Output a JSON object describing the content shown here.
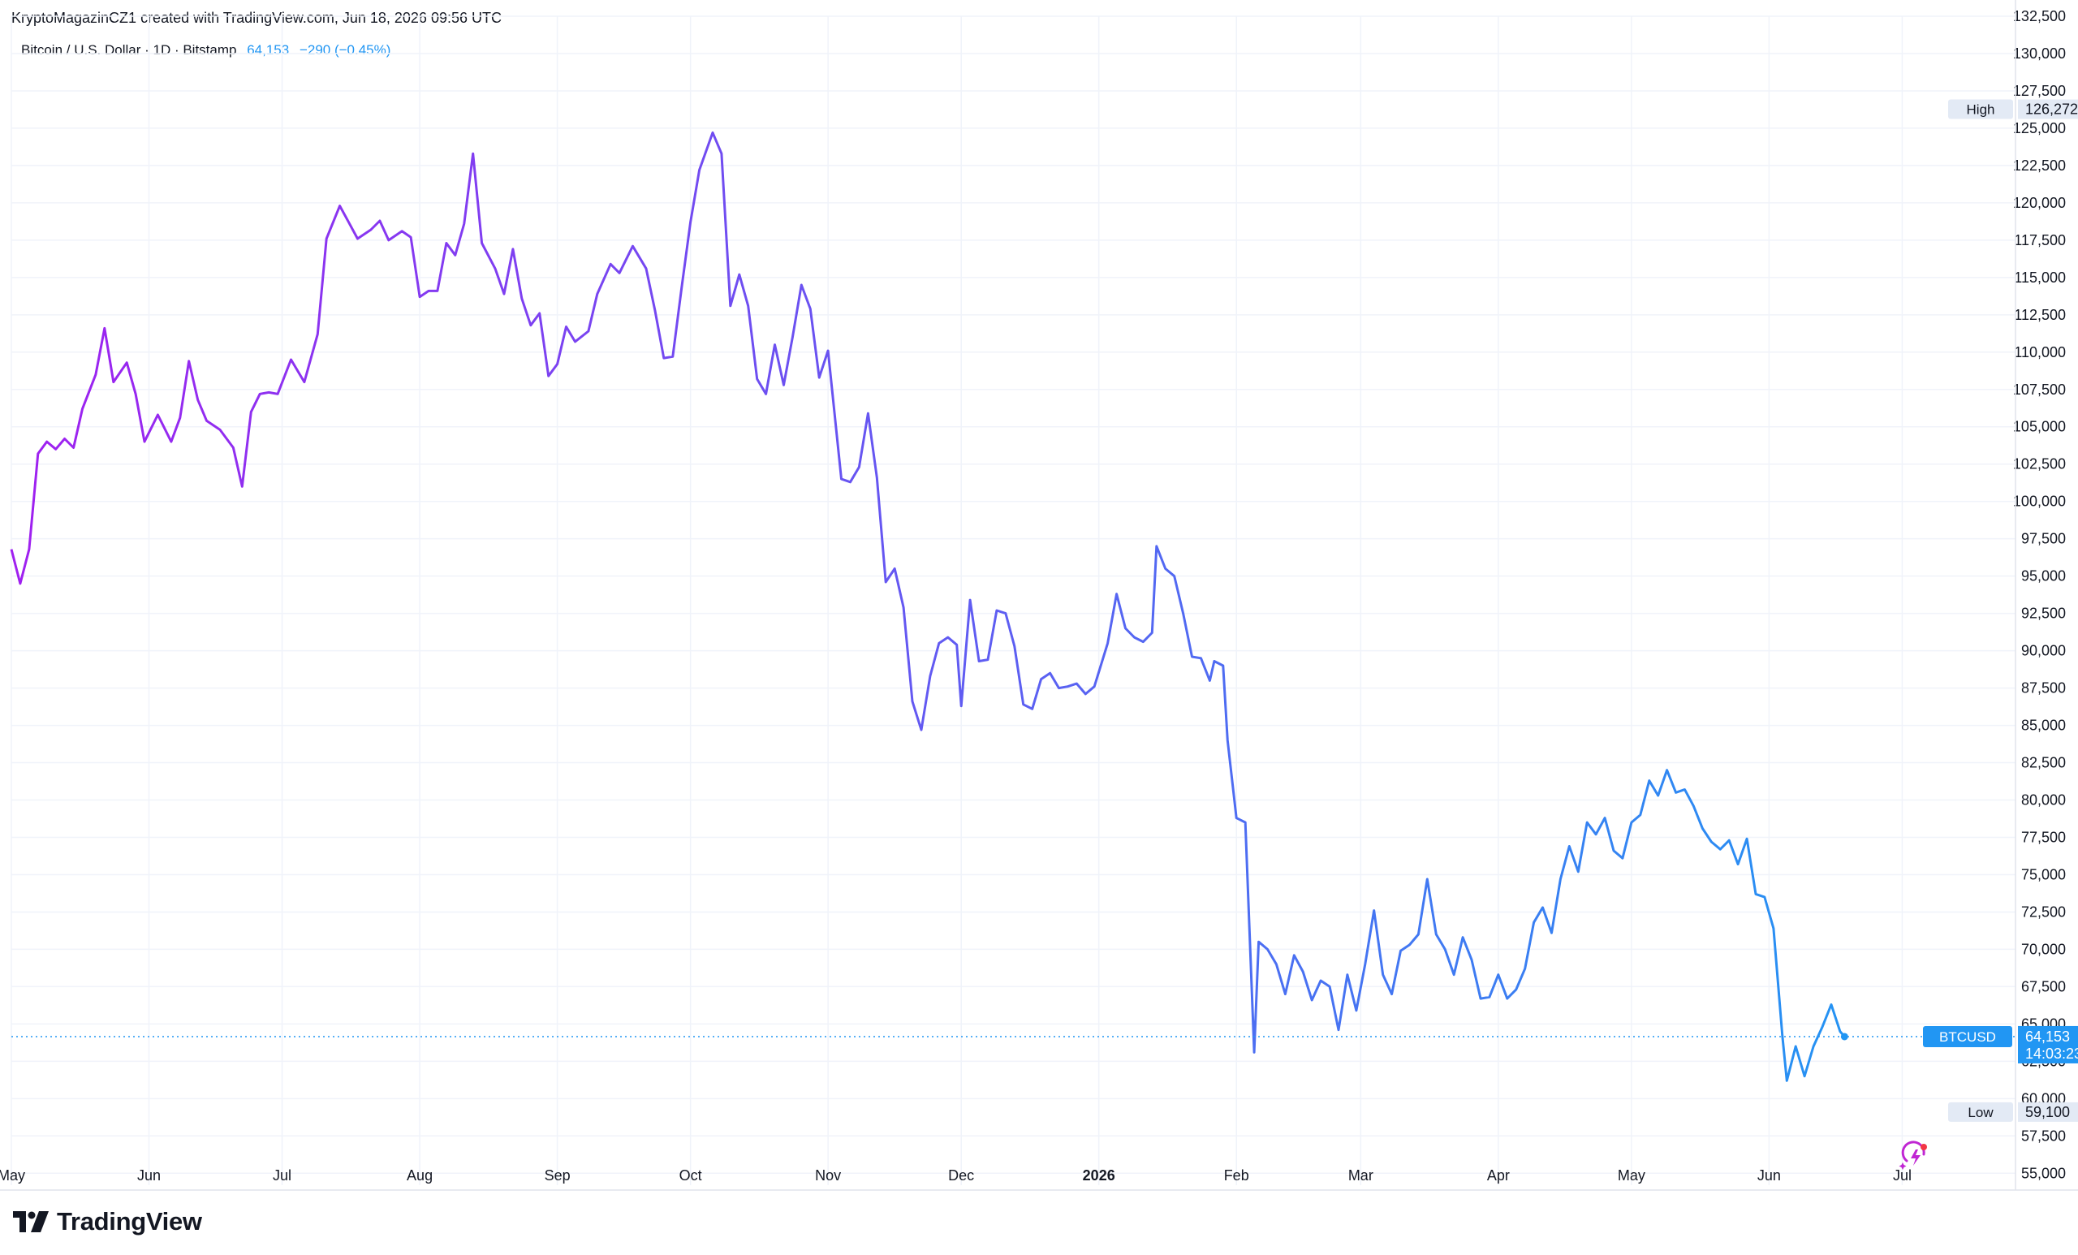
{
  "attribution": "KryptoMagazinCZ1 created with TradingView.com, Jun 18, 2026 09:56 UTC",
  "symbol": {
    "name": "Bitcoin / U.S. Dollar · 1D · Bitstamp",
    "price": "64,153",
    "change": "−290 (−0.45%)"
  },
  "brand": {
    "logo_text": "TradingView"
  },
  "colors": {
    "line_start": "#a020f0",
    "line_end": "#2196f3",
    "last_price": "#2196f3",
    "grid": "#f0f3fa",
    "label_bg": "#e3eaf5"
  },
  "icons": {
    "bottom_right": "lightning-swirl-icon"
  },
  "chart_data": {
    "type": "line",
    "ticker": "BTCUSD",
    "last_price": 64153,
    "last_price_label": "64,153",
    "countdown": "14:03:23",
    "high": {
      "label": "High",
      "value": 126272,
      "value_label": "126,272"
    },
    "low": {
      "label": "Low",
      "value": 59100,
      "value_label": "59,100"
    },
    "ylim": [
      54200,
      132500
    ],
    "yticks": [
      55000,
      57500,
      60000,
      62500,
      65000,
      67500,
      70000,
      72500,
      75000,
      77500,
      80000,
      82500,
      85000,
      87500,
      90000,
      92500,
      95000,
      97500,
      100000,
      102500,
      105000,
      107500,
      110000,
      112500,
      115000,
      117500,
      120000,
      122500,
      125000,
      127500,
      130000,
      132500
    ],
    "ytick_labels": [
      "55,000",
      "57,500",
      "60,000",
      "62,500",
      "65,000",
      "67,500",
      "70,000",
      "72,500",
      "75,000",
      "77,500",
      "80,000",
      "82,500",
      "85,000",
      "87,500",
      "90,000",
      "92,500",
      "95,000",
      "97,500",
      "100,000",
      "102,500",
      "105,000",
      "107,500",
      "110,000",
      "112,500",
      "115,000",
      "117,500",
      "120,000",
      "122,500",
      "125,000",
      "127,500",
      "130,000",
      "132,500"
    ],
    "x_range": [
      "2025-05-01",
      "2026-07-15"
    ],
    "xticks": [
      {
        "date": "2025-05-01",
        "label": "May",
        "bold": false
      },
      {
        "date": "2025-06-01",
        "label": "Jun",
        "bold": false
      },
      {
        "date": "2025-07-01",
        "label": "Jul",
        "bold": false
      },
      {
        "date": "2025-08-01",
        "label": "Aug",
        "bold": false
      },
      {
        "date": "2025-09-01",
        "label": "Sep",
        "bold": false
      },
      {
        "date": "2025-10-01",
        "label": "Oct",
        "bold": false
      },
      {
        "date": "2025-11-01",
        "label": "Nov",
        "bold": false
      },
      {
        "date": "2025-12-01",
        "label": "Dec",
        "bold": false
      },
      {
        "date": "2026-01-01",
        "label": "2026",
        "bold": true
      },
      {
        "date": "2026-02-01",
        "label": "Feb",
        "bold": false
      },
      {
        "date": "2026-03-01",
        "label": "Mar",
        "bold": false
      },
      {
        "date": "2026-04-01",
        "label": "Apr",
        "bold": false
      },
      {
        "date": "2026-05-01",
        "label": "May",
        "bold": false
      },
      {
        "date": "2026-06-01",
        "label": "Jun",
        "bold": false
      },
      {
        "date": "2026-07-01",
        "label": "Jul",
        "bold": false
      }
    ],
    "grid": true,
    "series": [
      {
        "points": [
          [
            "2025-05-01",
            96800
          ],
          [
            "2025-05-03",
            94500
          ],
          [
            "2025-05-05",
            96800
          ],
          [
            "2025-05-07",
            103200
          ],
          [
            "2025-05-09",
            104000
          ],
          [
            "2025-05-11",
            103500
          ],
          [
            "2025-05-13",
            104200
          ],
          [
            "2025-05-15",
            103600
          ],
          [
            "2025-05-17",
            106200
          ],
          [
            "2025-05-20",
            108500
          ],
          [
            "2025-05-22",
            111600
          ],
          [
            "2025-05-24",
            108000
          ],
          [
            "2025-05-27",
            109300
          ],
          [
            "2025-05-29",
            107200
          ],
          [
            "2025-05-31",
            104000
          ],
          [
            "2025-06-03",
            105800
          ],
          [
            "2025-06-06",
            104000
          ],
          [
            "2025-06-08",
            105600
          ],
          [
            "2025-06-10",
            109400
          ],
          [
            "2025-06-12",
            106800
          ],
          [
            "2025-06-14",
            105400
          ],
          [
            "2025-06-17",
            104800
          ],
          [
            "2025-06-20",
            103600
          ],
          [
            "2025-06-22",
            101000
          ],
          [
            "2025-06-24",
            106000
          ],
          [
            "2025-06-26",
            107200
          ],
          [
            "2025-06-28",
            107300
          ],
          [
            "2025-06-30",
            107200
          ],
          [
            "2025-07-03",
            109500
          ],
          [
            "2025-07-06",
            108000
          ],
          [
            "2025-07-09",
            111200
          ],
          [
            "2025-07-11",
            117600
          ],
          [
            "2025-07-14",
            119800
          ],
          [
            "2025-07-16",
            118700
          ],
          [
            "2025-07-18",
            117600
          ],
          [
            "2025-07-21",
            118200
          ],
          [
            "2025-07-23",
            118800
          ],
          [
            "2025-07-25",
            117500
          ],
          [
            "2025-07-28",
            118100
          ],
          [
            "2025-07-30",
            117700
          ],
          [
            "2025-08-01",
            113700
          ],
          [
            "2025-08-03",
            114100
          ],
          [
            "2025-08-05",
            114100
          ],
          [
            "2025-08-07",
            117300
          ],
          [
            "2025-08-09",
            116500
          ],
          [
            "2025-08-11",
            118600
          ],
          [
            "2025-08-13",
            123300
          ],
          [
            "2025-08-15",
            117300
          ],
          [
            "2025-08-18",
            115600
          ],
          [
            "2025-08-20",
            113900
          ],
          [
            "2025-08-22",
            116900
          ],
          [
            "2025-08-24",
            113600
          ],
          [
            "2025-08-26",
            111800
          ],
          [
            "2025-08-28",
            112600
          ],
          [
            "2025-08-30",
            108400
          ],
          [
            "2025-09-01",
            109200
          ],
          [
            "2025-09-03",
            111700
          ],
          [
            "2025-09-05",
            110700
          ],
          [
            "2025-09-08",
            111400
          ],
          [
            "2025-09-10",
            113900
          ],
          [
            "2025-09-13",
            115900
          ],
          [
            "2025-09-15",
            115300
          ],
          [
            "2025-09-18",
            117100
          ],
          [
            "2025-09-21",
            115600
          ],
          [
            "2025-09-23",
            112800
          ],
          [
            "2025-09-25",
            109600
          ],
          [
            "2025-09-27",
            109700
          ],
          [
            "2025-09-29",
            114300
          ],
          [
            "2025-10-01",
            118700
          ],
          [
            "2025-10-03",
            122200
          ],
          [
            "2025-10-06",
            124700
          ],
          [
            "2025-10-08",
            123300
          ],
          [
            "2025-10-10",
            113100
          ],
          [
            "2025-10-12",
            115200
          ],
          [
            "2025-10-14",
            113100
          ],
          [
            "2025-10-16",
            108200
          ],
          [
            "2025-10-18",
            107200
          ],
          [
            "2025-10-20",
            110500
          ],
          [
            "2025-10-22",
            107800
          ],
          [
            "2025-10-24",
            111000
          ],
          [
            "2025-10-26",
            114500
          ],
          [
            "2025-10-28",
            112900
          ],
          [
            "2025-10-30",
            108300
          ],
          [
            "2025-11-01",
            110100
          ],
          [
            "2025-11-04",
            101500
          ],
          [
            "2025-11-06",
            101300
          ],
          [
            "2025-11-08",
            102300
          ],
          [
            "2025-11-10",
            105900
          ],
          [
            "2025-11-12",
            101600
          ],
          [
            "2025-11-14",
            94600
          ],
          [
            "2025-11-16",
            95500
          ],
          [
            "2025-11-18",
            92900
          ],
          [
            "2025-11-20",
            86600
          ],
          [
            "2025-11-22",
            84700
          ],
          [
            "2025-11-24",
            88300
          ],
          [
            "2025-11-26",
            90500
          ],
          [
            "2025-11-28",
            90900
          ],
          [
            "2025-11-30",
            90400
          ],
          [
            "2025-12-01",
            86300
          ],
          [
            "2025-12-03",
            93400
          ],
          [
            "2025-12-05",
            89300
          ],
          [
            "2025-12-07",
            89400
          ],
          [
            "2025-12-09",
            92700
          ],
          [
            "2025-12-11",
            92500
          ],
          [
            "2025-12-13",
            90300
          ],
          [
            "2025-12-15",
            86400
          ],
          [
            "2025-12-17",
            86100
          ],
          [
            "2025-12-19",
            88100
          ],
          [
            "2025-12-21",
            88500
          ],
          [
            "2025-12-23",
            87500
          ],
          [
            "2025-12-25",
            87600
          ],
          [
            "2025-12-27",
            87800
          ],
          [
            "2025-12-29",
            87100
          ],
          [
            "2025-12-31",
            87600
          ],
          [
            "2026-01-03",
            90500
          ],
          [
            "2026-01-05",
            93800
          ],
          [
            "2026-01-07",
            91500
          ],
          [
            "2026-01-09",
            90900
          ],
          [
            "2026-01-11",
            90600
          ],
          [
            "2026-01-13",
            91200
          ],
          [
            "2026-01-14",
            97000
          ],
          [
            "2026-01-16",
            95500
          ],
          [
            "2026-01-18",
            95000
          ],
          [
            "2026-01-20",
            92500
          ],
          [
            "2026-01-22",
            89600
          ],
          [
            "2026-01-24",
            89500
          ],
          [
            "2026-01-26",
            88000
          ],
          [
            "2026-01-27",
            89300
          ],
          [
            "2026-01-29",
            89000
          ],
          [
            "2026-01-30",
            84000
          ],
          [
            "2026-02-01",
            78800
          ],
          [
            "2026-02-03",
            78500
          ],
          [
            "2026-02-05",
            63100
          ],
          [
            "2026-02-06",
            70500
          ],
          [
            "2026-02-08",
            70000
          ],
          [
            "2026-02-10",
            69000
          ],
          [
            "2026-02-12",
            67000
          ],
          [
            "2026-02-14",
            69600
          ],
          [
            "2026-02-16",
            68500
          ],
          [
            "2026-02-18",
            66600
          ],
          [
            "2026-02-20",
            67900
          ],
          [
            "2026-02-22",
            67500
          ],
          [
            "2026-02-24",
            64600
          ],
          [
            "2026-02-26",
            68300
          ],
          [
            "2026-02-28",
            65900
          ],
          [
            "2026-03-02",
            69000
          ],
          [
            "2026-03-04",
            72600
          ],
          [
            "2026-03-06",
            68300
          ],
          [
            "2026-03-08",
            67000
          ],
          [
            "2026-03-10",
            69900
          ],
          [
            "2026-03-12",
            70300
          ],
          [
            "2026-03-14",
            71000
          ],
          [
            "2026-03-16",
            74700
          ],
          [
            "2026-03-18",
            71000
          ],
          [
            "2026-03-20",
            70000
          ],
          [
            "2026-03-22",
            68300
          ],
          [
            "2026-03-24",
            70800
          ],
          [
            "2026-03-26",
            69300
          ],
          [
            "2026-03-28",
            66700
          ],
          [
            "2026-03-30",
            66800
          ],
          [
            "2026-04-01",
            68300
          ],
          [
            "2026-04-03",
            66700
          ],
          [
            "2026-04-05",
            67300
          ],
          [
            "2026-04-07",
            68700
          ],
          [
            "2026-04-09",
            71800
          ],
          [
            "2026-04-11",
            72800
          ],
          [
            "2026-04-13",
            71100
          ],
          [
            "2026-04-15",
            74700
          ],
          [
            "2026-04-17",
            76900
          ],
          [
            "2026-04-19",
            75200
          ],
          [
            "2026-04-21",
            78500
          ],
          [
            "2026-04-23",
            77700
          ],
          [
            "2026-04-25",
            78800
          ],
          [
            "2026-04-27",
            76600
          ],
          [
            "2026-04-29",
            76100
          ],
          [
            "2026-05-01",
            78500
          ],
          [
            "2026-05-03",
            79000
          ],
          [
            "2026-05-05",
            81300
          ],
          [
            "2026-05-07",
            80300
          ],
          [
            "2026-05-09",
            82000
          ],
          [
            "2026-05-11",
            80500
          ],
          [
            "2026-05-13",
            80700
          ],
          [
            "2026-05-15",
            79600
          ],
          [
            "2026-05-17",
            78100
          ],
          [
            "2026-05-19",
            77200
          ],
          [
            "2026-05-21",
            76700
          ],
          [
            "2026-05-23",
            77300
          ],
          [
            "2026-05-25",
            75700
          ],
          [
            "2026-05-27",
            77400
          ],
          [
            "2026-05-29",
            73700
          ],
          [
            "2026-05-31",
            73500
          ],
          [
            "2026-06-02",
            71400
          ],
          [
            "2026-06-04",
            64200
          ],
          [
            "2026-06-05",
            61200
          ],
          [
            "2026-06-07",
            63500
          ],
          [
            "2026-06-09",
            61500
          ],
          [
            "2026-06-11",
            63500
          ],
          [
            "2026-06-13",
            64800
          ],
          [
            "2026-06-15",
            66300
          ],
          [
            "2026-06-17",
            64500
          ],
          [
            "2026-06-18",
            64153
          ]
        ]
      }
    ]
  }
}
